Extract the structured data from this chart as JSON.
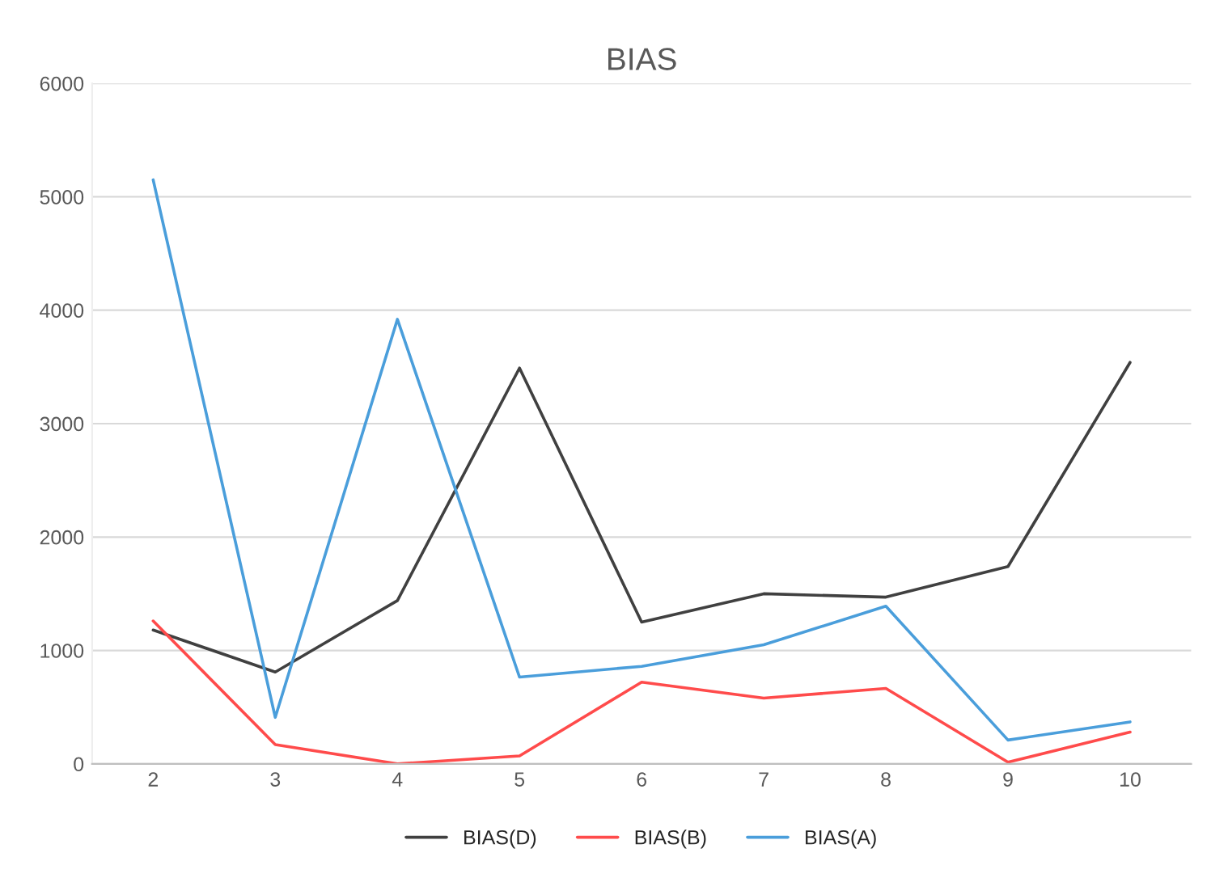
{
  "chart_data": {
    "type": "line",
    "title": "BIAS",
    "categories": [
      "2",
      "3",
      "4",
      "5",
      "6",
      "7",
      "8",
      "9",
      "10"
    ],
    "series": [
      {
        "name": "BIAS(D)",
        "color": "#404040",
        "values": [
          1180,
          810,
          1440,
          3490,
          1250,
          1500,
          1470,
          1740,
          3540
        ]
      },
      {
        "name": "BIAS(B)",
        "color": "#ff4b4b",
        "values": [
          1260,
          170,
          0,
          70,
          720,
          580,
          665,
          15,
          280
        ]
      },
      {
        "name": "BIAS(A)",
        "color": "#4a9edb",
        "values": [
          5150,
          410,
          3920,
          765,
          860,
          1050,
          1390,
          210,
          370
        ]
      }
    ],
    "ylim": [
      0,
      6000
    ],
    "yticks": [
      0,
      1000,
      2000,
      3000,
      4000,
      5000,
      6000
    ],
    "grid": "y",
    "legend": "bottom",
    "marker": "none",
    "line_style": "solid"
  }
}
